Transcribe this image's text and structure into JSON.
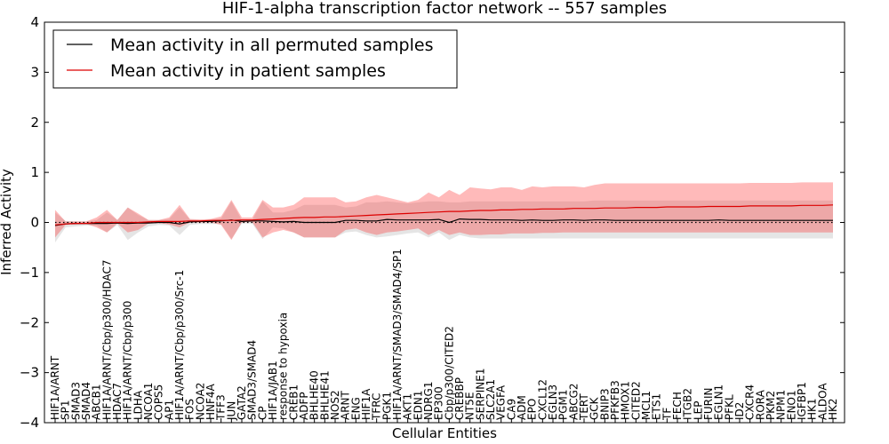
{
  "chart_data": {
    "type": "line",
    "title": "HIF-1-alpha transcription factor network -- 557 samples",
    "xlabel": "Cellular Entities",
    "ylabel": "Inferred Activity",
    "ylim": [
      -4,
      4
    ],
    "yticks": [
      -4,
      -3,
      -2,
      -1,
      0,
      1,
      2,
      3,
      4
    ],
    "ytick_labels": [
      "−4",
      "−3",
      "−2",
      "−1",
      "0",
      "1",
      "2",
      "3",
      "4"
    ],
    "legend_position": "top-left",
    "categories": [
      "HIF1A/ARNT",
      "SP1",
      "SMAD3",
      "SMAD4",
      "ABCB1",
      "HIF1A/ARNT/Cbp/p300/HDAC7",
      "HDAC7",
      "HIF1A/ARNT/Cbp/p300",
      "LDHA",
      "NCOA1",
      "COPS5",
      "AP1",
      "HIF1A/ARNT/Cbp/p300/Src-1",
      "FOS",
      "NCOA2",
      "HNF4A",
      "TFF3",
      "JUN",
      "GATA2",
      "SMAD3/SMAD4",
      "CP",
      "HIF1A/JAB1",
      "response to hypoxia",
      "CREB1",
      "ADFP",
      "BHLHE40",
      "BHLHE41",
      "NOS2",
      "ARNT",
      "ENG",
      "HIF1A",
      "TFRC",
      "PGK1",
      "HIF1A/ARNT/SMAD3/SMAD4/SP1",
      "AKT1",
      "EDN1",
      "NDRG1",
      "EP300",
      "Cbp/p300/CITED2",
      "CREBBP",
      "NT5E",
      "SERPINE1",
      "SLC2A1",
      "VEGFA",
      "CA9",
      "ADM",
      "EPO",
      "CXCL12",
      "EGLN3",
      "PGM1",
      "ABCG2",
      "TERT",
      "GCK",
      "BNIP3",
      "PFKFB3",
      "HMOX1",
      "CITED2",
      "MCL1",
      "ETS1",
      "TF",
      "FECH",
      "ITGB2",
      "LEP",
      "FURIN",
      "EGLN1",
      "PFKL",
      "ID2",
      "CXCR4",
      "RORA",
      "PKM2",
      "NPM1",
      "ENO1",
      "IGFBP1",
      "HK1",
      "ALDOA",
      "HK2"
    ],
    "series": [
      {
        "name": "Mean activity in all permuted samples",
        "color": "#000000",
        "values": [
          -0.06,
          -0.03,
          -0.02,
          -0.02,
          -0.02,
          -0.02,
          -0.01,
          -0.02,
          -0.01,
          -0.01,
          0.0,
          0.0,
          -0.03,
          0.01,
          0.02,
          0.02,
          0.03,
          0.05,
          0.02,
          0.03,
          0.03,
          0.02,
          0.01,
          0.02,
          0.0,
          0.0,
          0.0,
          0.0,
          0.04,
          0.04,
          0.03,
          0.03,
          0.06,
          0.05,
          0.05,
          0.05,
          0.05,
          0.06,
          0.0,
          0.07,
          0.06,
          0.06,
          0.05,
          0.05,
          0.05,
          0.04,
          0.05,
          0.04,
          0.04,
          0.05,
          0.05,
          0.04,
          0.05,
          0.05,
          0.04,
          0.04,
          0.04,
          0.04,
          0.04,
          0.04,
          0.04,
          0.04,
          0.04,
          0.04,
          0.05,
          0.04,
          0.04,
          0.04,
          0.04,
          0.04,
          0.04,
          0.04,
          0.04,
          0.04,
          0.04,
          0.04
        ],
        "band_lower": [
          -0.4,
          -0.1,
          -0.08,
          -0.06,
          -0.06,
          -0.2,
          -0.05,
          -0.35,
          -0.2,
          -0.08,
          -0.05,
          -0.06,
          -0.25,
          -0.05,
          -0.03,
          -0.03,
          -0.03,
          -0.33,
          -0.02,
          -0.02,
          -0.33,
          -0.1,
          -0.12,
          -0.2,
          -0.3,
          -0.3,
          -0.3,
          -0.3,
          -0.2,
          -0.18,
          -0.25,
          -0.3,
          -0.28,
          -0.25,
          -0.22,
          -0.2,
          -0.3,
          -0.2,
          -0.35,
          -0.25,
          -0.3,
          -0.32,
          -0.32,
          -0.32,
          -0.32,
          -0.32,
          -0.32,
          -0.32,
          -0.32,
          -0.32,
          -0.32,
          -0.32,
          -0.32,
          -0.32,
          -0.32,
          -0.32,
          -0.32,
          -0.32,
          -0.32,
          -0.32,
          -0.32,
          -0.32,
          -0.32,
          -0.32,
          -0.32,
          -0.32,
          -0.32,
          -0.32,
          -0.32,
          -0.32,
          -0.32,
          -0.32,
          -0.32,
          -0.32,
          -0.32,
          -0.32
        ],
        "band_upper": [
          0.2,
          0.03,
          0.02,
          0.02,
          0.05,
          0.2,
          0.05,
          0.3,
          0.15,
          0.05,
          0.05,
          0.07,
          0.3,
          0.06,
          0.05,
          0.05,
          0.08,
          0.42,
          0.05,
          0.05,
          0.42,
          0.2,
          0.2,
          0.25,
          0.35,
          0.35,
          0.35,
          0.35,
          0.3,
          0.32,
          0.4,
          0.4,
          0.42,
          0.4,
          0.38,
          0.4,
          0.42,
          0.42,
          0.4,
          0.4,
          0.42,
          0.42,
          0.42,
          0.42,
          0.42,
          0.42,
          0.42,
          0.42,
          0.42,
          0.42,
          0.42,
          0.42,
          0.44,
          0.44,
          0.44,
          0.44,
          0.44,
          0.44,
          0.44,
          0.44,
          0.44,
          0.44,
          0.44,
          0.44,
          0.44,
          0.44,
          0.44,
          0.44,
          0.44,
          0.44,
          0.44,
          0.44,
          0.44,
          0.44,
          0.44,
          0.44
        ]
      },
      {
        "name": "Mean activity in patient samples",
        "color": "#dd0000",
        "values": [
          -0.05,
          -0.03,
          -0.02,
          -0.02,
          0.0,
          0.0,
          0.0,
          0.0,
          0.0,
          0.01,
          0.02,
          0.02,
          0.02,
          0.03,
          0.03,
          0.04,
          0.04,
          0.04,
          0.05,
          0.05,
          0.06,
          0.07,
          0.08,
          0.09,
          0.1,
          0.1,
          0.11,
          0.11,
          0.12,
          0.13,
          0.14,
          0.15,
          0.16,
          0.17,
          0.18,
          0.19,
          0.2,
          0.21,
          0.22,
          0.22,
          0.23,
          0.24,
          0.24,
          0.25,
          0.25,
          0.26,
          0.26,
          0.27,
          0.27,
          0.27,
          0.28,
          0.28,
          0.28,
          0.29,
          0.29,
          0.29,
          0.3,
          0.3,
          0.3,
          0.31,
          0.31,
          0.31,
          0.31,
          0.32,
          0.32,
          0.32,
          0.32,
          0.33,
          0.33,
          0.33,
          0.33,
          0.33,
          0.34,
          0.34,
          0.34,
          0.35
        ],
        "band_lower": [
          -0.3,
          -0.05,
          -0.04,
          -0.03,
          -0.1,
          -0.2,
          -0.02,
          -0.2,
          -0.15,
          -0.02,
          -0.01,
          -0.04,
          -0.1,
          0.0,
          0.0,
          0.0,
          -0.05,
          -0.35,
          0.0,
          0.01,
          -0.3,
          -0.2,
          -0.15,
          -0.2,
          -0.3,
          -0.3,
          -0.3,
          -0.3,
          -0.15,
          -0.12,
          -0.2,
          -0.25,
          -0.2,
          -0.18,
          -0.15,
          -0.12,
          -0.25,
          -0.15,
          -0.25,
          -0.2,
          -0.25,
          -0.25,
          -0.24,
          -0.24,
          -0.22,
          -0.22,
          -0.22,
          -0.21,
          -0.21,
          -0.2,
          -0.2,
          -0.2,
          -0.2,
          -0.2,
          -0.2,
          -0.2,
          -0.2,
          -0.2,
          -0.2,
          -0.2,
          -0.2,
          -0.2,
          -0.2,
          -0.2,
          -0.2,
          -0.2,
          -0.2,
          -0.2,
          -0.2,
          -0.2,
          -0.2,
          -0.2,
          -0.2,
          -0.2,
          -0.2,
          -0.2
        ],
        "band_upper": [
          0.25,
          0.02,
          0.02,
          0.02,
          0.1,
          0.25,
          0.05,
          0.3,
          0.18,
          0.05,
          0.05,
          0.1,
          0.35,
          0.07,
          0.06,
          0.07,
          0.12,
          0.45,
          0.1,
          0.1,
          0.45,
          0.3,
          0.3,
          0.35,
          0.5,
          0.5,
          0.5,
          0.5,
          0.4,
          0.42,
          0.5,
          0.55,
          0.5,
          0.45,
          0.4,
          0.45,
          0.6,
          0.5,
          0.65,
          0.55,
          0.7,
          0.68,
          0.66,
          0.7,
          0.7,
          0.65,
          0.72,
          0.7,
          0.72,
          0.72,
          0.72,
          0.7,
          0.75,
          0.78,
          0.78,
          0.78,
          0.78,
          0.78,
          0.78,
          0.78,
          0.78,
          0.78,
          0.78,
          0.78,
          0.78,
          0.78,
          0.78,
          0.79,
          0.79,
          0.79,
          0.79,
          0.79,
          0.8,
          0.8,
          0.8,
          0.8
        ]
      }
    ],
    "baseline": 0
  }
}
